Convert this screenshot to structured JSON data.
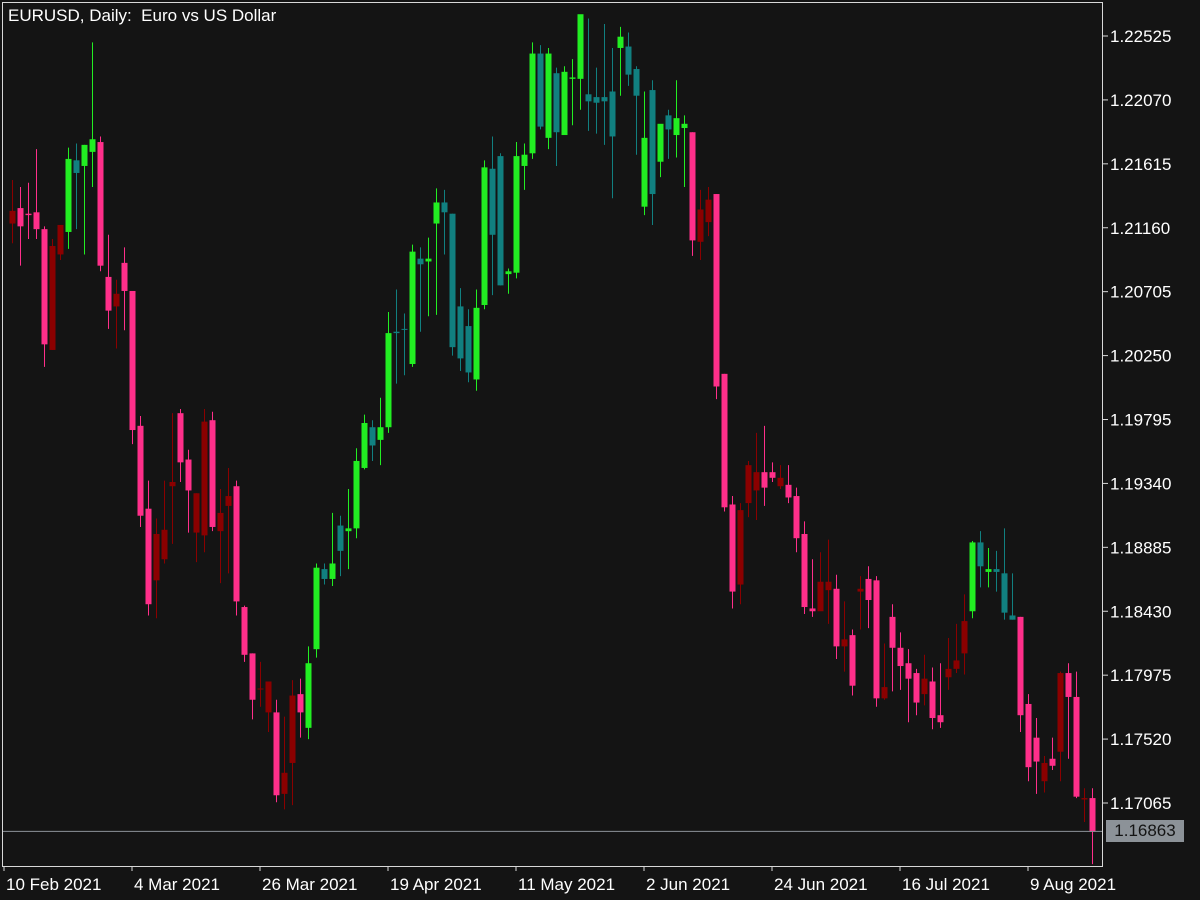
{
  "header": {
    "title": "EURUSD, Daily:  Euro vs US Dollar"
  },
  "colors": {
    "background": "#141414",
    "frame": "#d8d8d8",
    "bull_strong": "#22ee22",
    "bull_weak": "#118080",
    "bear_strong": "#ff2f8a",
    "bear_weak": "#8b0000",
    "current_line": "#8c9298"
  },
  "current_price": {
    "value": 1.16863,
    "label": "1.16863"
  },
  "chart_data": {
    "type": "candlestick",
    "symbol": "EURUSD",
    "timeframe": "Daily",
    "title": "Euro vs US Dollar",
    "ylim": [
      1.1655,
      1.2275
    ],
    "y_ticks": [
      "1.22525",
      "1.22070",
      "1.21615",
      "1.21160",
      "1.20705",
      "1.20250",
      "1.19795",
      "1.19340",
      "1.18885",
      "1.18430",
      "1.17975",
      "1.17520",
      "1.17065"
    ],
    "x_ticks": [
      {
        "label": "10 Feb 2021",
        "index": 0
      },
      {
        "label": "4 Mar 2021",
        "index": 16
      },
      {
        "label": "26 Mar 2021",
        "index": 32
      },
      {
        "label": "19 Apr 2021",
        "index": 48
      },
      {
        "label": "11 May 2021",
        "index": 64
      },
      {
        "label": "2 Jun 2021",
        "index": 80
      },
      {
        "label": "24 Jun 2021",
        "index": 96
      },
      {
        "label": "16 Jul 2021",
        "index": 112
      },
      {
        "label": "9 Aug 2021",
        "index": 128
      }
    ],
    "candles": [
      {
        "o": 1.2119,
        "h": 1.215,
        "l": 1.2105,
        "c": 1.2128,
        "s": "bear_weak"
      },
      {
        "o": 1.213,
        "h": 1.2145,
        "l": 1.2089,
        "c": 1.2117,
        "s": "bear_strong"
      },
      {
        "o": 1.2126,
        "h": 1.2148,
        "l": 1.2108,
        "c": 1.2125,
        "s": "bear_strong"
      },
      {
        "o": 1.2127,
        "h": 1.2172,
        "l": 1.2108,
        "c": 1.2115,
        "s": "bear_strong"
      },
      {
        "o": 1.2115,
        "h": 1.2117,
        "l": 1.2017,
        "c": 1.2033,
        "s": "bear_strong"
      },
      {
        "o": 1.2103,
        "h": 1.2108,
        "l": 1.2029,
        "c": 1.2029,
        "s": "bear_weak"
      },
      {
        "o": 1.2097,
        "h": 1.2118,
        "l": 1.2093,
        "c": 1.2118,
        "s": "bear_weak"
      },
      {
        "o": 1.2113,
        "h": 1.2173,
        "l": 1.2101,
        "c": 1.2165,
        "s": "bull_strong"
      },
      {
        "o": 1.2155,
        "h": 1.2176,
        "l": 1.2115,
        "c": 1.2164,
        "s": "bull_weak"
      },
      {
        "o": 1.216,
        "h": 1.2175,
        "l": 1.2097,
        "c": 1.2175,
        "s": "bull_strong"
      },
      {
        "o": 1.217,
        "h": 1.2248,
        "l": 1.2145,
        "c": 1.2179,
        "s": "bull_strong"
      },
      {
        "o": 1.2177,
        "h": 1.2181,
        "l": 1.2085,
        "c": 1.2089,
        "s": "bear_strong"
      },
      {
        "o": 1.2081,
        "h": 1.2111,
        "l": 1.2044,
        "c": 1.2057,
        "s": "bear_strong"
      },
      {
        "o": 1.2069,
        "h": 1.2079,
        "l": 1.203,
        "c": 1.206,
        "s": "bear_weak"
      },
      {
        "o": 1.2091,
        "h": 1.2102,
        "l": 1.2043,
        "c": 1.2071,
        "s": "bear_strong"
      },
      {
        "o": 1.2071,
        "h": 1.2071,
        "l": 1.1962,
        "c": 1.1972,
        "s": "bear_strong"
      },
      {
        "o": 1.1975,
        "h": 1.1982,
        "l": 1.1903,
        "c": 1.1911,
        "s": "bear_strong"
      },
      {
        "o": 1.1916,
        "h": 1.1936,
        "l": 1.184,
        "c": 1.1848,
        "s": "bear_strong"
      },
      {
        "o": 1.1898,
        "h": 1.1909,
        "l": 1.1838,
        "c": 1.1865,
        "s": "bear_weak"
      },
      {
        "o": 1.188,
        "h": 1.1936,
        "l": 1.1877,
        "c": 1.1901,
        "s": "bear_weak"
      },
      {
        "o": 1.1932,
        "h": 1.1984,
        "l": 1.1891,
        "c": 1.1935,
        "s": "bear_weak"
      },
      {
        "o": 1.1984,
        "h": 1.1987,
        "l": 1.1935,
        "c": 1.1949,
        "s": "bear_strong"
      },
      {
        "o": 1.1951,
        "h": 1.1958,
        "l": 1.1899,
        "c": 1.1929,
        "s": "bear_strong"
      },
      {
        "o": 1.1927,
        "h": 1.1927,
        "l": 1.1878,
        "c": 1.1899,
        "s": "bear_weak"
      },
      {
        "o": 1.1978,
        "h": 1.1987,
        "l": 1.1885,
        "c": 1.1897,
        "s": "bear_weak"
      },
      {
        "o": 1.1979,
        "h": 1.1985,
        "l": 1.19,
        "c": 1.1903,
        "s": "bear_strong"
      },
      {
        "o": 1.1913,
        "h": 1.193,
        "l": 1.1863,
        "c": 1.19,
        "s": "bear_weak"
      },
      {
        "o": 1.1925,
        "h": 1.1945,
        "l": 1.187,
        "c": 1.1918,
        "s": "bear_weak"
      },
      {
        "o": 1.1932,
        "h": 1.1936,
        "l": 1.184,
        "c": 1.185,
        "s": "bear_strong"
      },
      {
        "o": 1.1846,
        "h": 1.1847,
        "l": 1.1807,
        "c": 1.1812,
        "s": "bear_strong"
      },
      {
        "o": 1.1813,
        "h": 1.1813,
        "l": 1.1766,
        "c": 1.178,
        "s": "bear_strong"
      },
      {
        "o": 1.1788,
        "h": 1.1807,
        "l": 1.1775,
        "c": 1.1788,
        "s": "bear_weak"
      },
      {
        "o": 1.1793,
        "h": 1.1793,
        "l": 1.1757,
        "c": 1.1771,
        "s": "bear_weak"
      },
      {
        "o": 1.1771,
        "h": 1.178,
        "l": 1.1707,
        "c": 1.1712,
        "s": "bear_strong"
      },
      {
        "o": 1.1728,
        "h": 1.1768,
        "l": 1.1702,
        "c": 1.1713,
        "s": "bear_weak"
      },
      {
        "o": 1.1783,
        "h": 1.1794,
        "l": 1.1705,
        "c": 1.1735,
        "s": "bear_weak"
      },
      {
        "o": 1.1784,
        "h": 1.1795,
        "l": 1.1753,
        "c": 1.1771,
        "s": "bear_strong"
      },
      {
        "o": 1.176,
        "h": 1.1818,
        "l": 1.1752,
        "c": 1.1806,
        "s": "bull_strong"
      },
      {
        "o": 1.1816,
        "h": 1.1877,
        "l": 1.181,
        "c": 1.1874,
        "s": "bull_strong"
      },
      {
        "o": 1.1873,
        "h": 1.1877,
        "l": 1.1862,
        "c": 1.1866,
        "s": "bull_weak"
      },
      {
        "o": 1.1866,
        "h": 1.1913,
        "l": 1.1861,
        "c": 1.1877,
        "s": "bull_strong"
      },
      {
        "o": 1.1886,
        "h": 1.1911,
        "l": 1.1868,
        "c": 1.1904,
        "s": "bull_weak"
      },
      {
        "o": 1.19,
        "h": 1.193,
        "l": 1.1873,
        "c": 1.1902,
        "s": "bull_strong"
      },
      {
        "o": 1.1902,
        "h": 1.1959,
        "l": 1.1895,
        "c": 1.195,
        "s": "bull_strong"
      },
      {
        "o": 1.1945,
        "h": 1.1983,
        "l": 1.1944,
        "c": 1.1977,
        "s": "bull_strong"
      },
      {
        "o": 1.1961,
        "h": 1.1979,
        "l": 1.195,
        "c": 1.1974,
        "s": "bull_weak"
      },
      {
        "o": 1.1965,
        "h": 1.1995,
        "l": 1.1947,
        "c": 1.1974,
        "s": "bull_strong"
      },
      {
        "o": 1.1974,
        "h": 1.2056,
        "l": 1.197,
        "c": 1.2041,
        "s": "bull_strong"
      },
      {
        "o": 1.2041,
        "h": 1.2072,
        "l": 1.2005,
        "c": 1.2042,
        "s": "bull_weak"
      },
      {
        "o": 1.2044,
        "h": 1.2055,
        "l": 1.2011,
        "c": 1.2044,
        "s": "bull_weak"
      },
      {
        "o": 1.2019,
        "h": 1.2104,
        "l": 1.2017,
        "c": 1.2099,
        "s": "bull_strong"
      },
      {
        "o": 1.209,
        "h": 1.2102,
        "l": 1.2042,
        "c": 1.2094,
        "s": "bull_weak"
      },
      {
        "o": 1.2092,
        "h": 1.2109,
        "l": 1.2053,
        "c": 1.2094,
        "s": "bull_strong"
      },
      {
        "o": 1.2119,
        "h": 1.2144,
        "l": 1.2054,
        "c": 1.2134,
        "s": "bull_strong"
      },
      {
        "o": 1.2134,
        "h": 1.2143,
        "l": 1.2097,
        "c": 1.2127,
        "s": "bull_weak"
      },
      {
        "o": 1.2126,
        "h": 1.2126,
        "l": 1.2025,
        "c": 1.2031,
        "s": "bull_weak"
      },
      {
        "o": 1.206,
        "h": 1.2073,
        "l": 1.2014,
        "c": 1.2023,
        "s": "bull_weak"
      },
      {
        "o": 1.2046,
        "h": 1.2058,
        "l": 1.2006,
        "c": 1.2013,
        "s": "bull_weak"
      },
      {
        "o": 1.2008,
        "h": 1.2072,
        "l": 1.2,
        "c": 1.2059,
        "s": "bull_strong"
      },
      {
        "o": 1.2061,
        "h": 1.2164,
        "l": 1.2058,
        "c": 1.2159,
        "s": "bull_strong"
      },
      {
        "o": 1.2158,
        "h": 1.2181,
        "l": 1.2068,
        "c": 1.2111,
        "s": "bull_weak"
      },
      {
        "o": 1.2075,
        "h": 1.2169,
        "l": 1.2075,
        "c": 1.2167,
        "s": "bull_weak"
      },
      {
        "o": 1.2083,
        "h": 1.2087,
        "l": 1.2069,
        "c": 1.2085,
        "s": "bull_strong"
      },
      {
        "o": 1.2084,
        "h": 1.2177,
        "l": 1.208,
        "c": 1.2167,
        "s": "bull_strong"
      },
      {
        "o": 1.216,
        "h": 1.2176,
        "l": 1.2143,
        "c": 1.2168,
        "s": "bull_strong"
      },
      {
        "o": 1.2169,
        "h": 1.2248,
        "l": 1.2165,
        "c": 1.224,
        "s": "bull_strong"
      },
      {
        "o": 1.224,
        "h": 1.2246,
        "l": 1.2186,
        "c": 1.2188,
        "s": "bull_weak"
      },
      {
        "o": 1.224,
        "h": 1.2244,
        "l": 1.2172,
        "c": 1.218,
        "s": "bull_strong"
      },
      {
        "o": 1.2184,
        "h": 1.223,
        "l": 1.216,
        "c": 1.2226,
        "s": "bull_weak"
      },
      {
        "o": 1.2227,
        "h": 1.2231,
        "l": 1.2182,
        "c": 1.2182,
        "s": "bull_strong"
      },
      {
        "o": 1.2223,
        "h": 1.2236,
        "l": 1.2189,
        "c": 1.2222,
        "s": "bull_strong"
      },
      {
        "o": 1.2222,
        "h": 1.2266,
        "l": 1.22,
        "c": 1.2268,
        "s": "bull_strong"
      },
      {
        "o": 1.2211,
        "h": 1.2265,
        "l": 1.2185,
        "c": 1.2206,
        "s": "bull_weak"
      },
      {
        "o": 1.2205,
        "h": 1.223,
        "l": 1.2183,
        "c": 1.2209,
        "s": "bull_weak"
      },
      {
        "o": 1.2209,
        "h": 1.2261,
        "l": 1.2175,
        "c": 1.2206,
        "s": "bull_weak"
      },
      {
        "o": 1.2213,
        "h": 1.2244,
        "l": 1.2137,
        "c": 1.2181,
        "s": "bull_weak"
      },
      {
        "o": 1.2244,
        "h": 1.2259,
        "l": 1.221,
        "c": 1.2252,
        "s": "bull_strong"
      },
      {
        "o": 1.2245,
        "h": 1.2255,
        "l": 1.2217,
        "c": 1.2225,
        "s": "bull_weak"
      },
      {
        "o": 1.2229,
        "h": 1.2231,
        "l": 1.2168,
        "c": 1.221,
        "s": "bull_weak"
      },
      {
        "o": 1.218,
        "h": 1.2213,
        "l": 1.2125,
        "c": 1.2131,
        "s": "bull_strong"
      },
      {
        "o": 1.2214,
        "h": 1.2221,
        "l": 1.2118,
        "c": 1.214,
        "s": "bull_weak"
      },
      {
        "o": 1.2163,
        "h": 1.2188,
        "l": 1.2152,
        "c": 1.219,
        "s": "bull_strong"
      },
      {
        "o": 1.2196,
        "h": 1.22,
        "l": 1.2165,
        "c": 1.2186,
        "s": "bull_weak"
      },
      {
        "o": 1.2182,
        "h": 1.2221,
        "l": 1.2166,
        "c": 1.2194,
        "s": "bull_strong"
      },
      {
        "o": 1.219,
        "h": 1.2196,
        "l": 1.2145,
        "c": 1.2187,
        "s": "bull_strong"
      },
      {
        "o": 1.2184,
        "h": 1.2184,
        "l": 1.2096,
        "c": 1.2107,
        "s": "bear_strong"
      },
      {
        "o": 1.2129,
        "h": 1.2143,
        "l": 1.2093,
        "c": 1.2106,
        "s": "bear_weak"
      },
      {
        "o": 1.2136,
        "h": 1.2145,
        "l": 1.211,
        "c": 1.212,
        "s": "bear_weak"
      },
      {
        "o": 1.214,
        "h": 1.214,
        "l": 1.1994,
        "c": 1.2003,
        "s": "bear_strong"
      },
      {
        "o": 1.2012,
        "h": 1.2012,
        "l": 1.1914,
        "c": 1.1917,
        "s": "bear_strong"
      },
      {
        "o": 1.1919,
        "h": 1.1925,
        "l": 1.1845,
        "c": 1.1857,
        "s": "bear_strong"
      },
      {
        "o": 1.1915,
        "h": 1.192,
        "l": 1.1848,
        "c": 1.1862,
        "s": "bear_weak"
      },
      {
        "o": 1.192,
        "h": 1.195,
        "l": 1.191,
        "c": 1.1947,
        "s": "bear_weak"
      },
      {
        "o": 1.1942,
        "h": 1.197,
        "l": 1.1908,
        "c": 1.1929,
        "s": "bear_weak"
      },
      {
        "o": 1.1942,
        "h": 1.1975,
        "l": 1.1918,
        "c": 1.1931,
        "s": "bear_strong"
      },
      {
        "o": 1.1942,
        "h": 1.1949,
        "l": 1.1935,
        "c": 1.1938,
        "s": "bear_strong"
      },
      {
        "o": 1.1938,
        "h": 1.1947,
        "l": 1.193,
        "c": 1.1932,
        "s": "bear_weak"
      },
      {
        "o": 1.1933,
        "h": 1.1947,
        "l": 1.192,
        "c": 1.1924,
        "s": "bear_strong"
      },
      {
        "o": 1.1925,
        "h": 1.1931,
        "l": 1.1885,
        "c": 1.1895,
        "s": "bear_strong"
      },
      {
        "o": 1.1898,
        "h": 1.1907,
        "l": 1.1841,
        "c": 1.1846,
        "s": "bear_strong"
      },
      {
        "o": 1.1845,
        "h": 1.188,
        "l": 1.1839,
        "c": 1.1843,
        "s": "bear_strong"
      },
      {
        "o": 1.1864,
        "h": 1.1885,
        "l": 1.1845,
        "c": 1.1843,
        "s": "bear_weak"
      },
      {
        "o": 1.1864,
        "h": 1.1894,
        "l": 1.1834,
        "c": 1.1858,
        "s": "bear_weak"
      },
      {
        "o": 1.1859,
        "h": 1.1869,
        "l": 1.1809,
        "c": 1.1818,
        "s": "bear_strong"
      },
      {
        "o": 1.1823,
        "h": 1.185,
        "l": 1.18,
        "c": 1.1818,
        "s": "bear_weak"
      },
      {
        "o": 1.1826,
        "h": 1.183,
        "l": 1.1783,
        "c": 1.179,
        "s": "bear_strong"
      },
      {
        "o": 1.1859,
        "h": 1.1868,
        "l": 1.183,
        "c": 1.1857,
        "s": "bear_weak"
      },
      {
        "o": 1.1866,
        "h": 1.1875,
        "l": 1.1831,
        "c": 1.1851,
        "s": "bear_strong"
      },
      {
        "o": 1.1865,
        "h": 1.1868,
        "l": 1.1775,
        "c": 1.1781,
        "s": "bear_strong"
      },
      {
        "o": 1.1789,
        "h": 1.182,
        "l": 1.178,
        "c": 1.1781,
        "s": "bear_weak"
      },
      {
        "o": 1.1839,
        "h": 1.1848,
        "l": 1.1786,
        "c": 1.1817,
        "s": "bear_strong"
      },
      {
        "o": 1.1817,
        "h": 1.1828,
        "l": 1.1787,
        "c": 1.1804,
        "s": "bear_strong"
      },
      {
        "o": 1.1806,
        "h": 1.1816,
        "l": 1.1764,
        "c": 1.1795,
        "s": "bear_strong"
      },
      {
        "o": 1.1799,
        "h": 1.1802,
        "l": 1.1769,
        "c": 1.1778,
        "s": "bear_strong"
      },
      {
        "o": 1.1795,
        "h": 1.1812,
        "l": 1.1776,
        "c": 1.1784,
        "s": "bear_weak"
      },
      {
        "o": 1.1793,
        "h": 1.1803,
        "l": 1.1759,
        "c": 1.1767,
        "s": "bear_strong"
      },
      {
        "o": 1.1769,
        "h": 1.1806,
        "l": 1.176,
        "c": 1.1764,
        "s": "bear_strong"
      },
      {
        "o": 1.1796,
        "h": 1.1824,
        "l": 1.1787,
        "c": 1.1802,
        "s": "bear_weak"
      },
      {
        "o": 1.1808,
        "h": 1.1834,
        "l": 1.1799,
        "c": 1.1802,
        "s": "bear_weak"
      },
      {
        "o": 1.1836,
        "h": 1.1855,
        "l": 1.1798,
        "c": 1.1813,
        "s": "bear_weak"
      },
      {
        "o": 1.1843,
        "h": 1.1893,
        "l": 1.1838,
        "c": 1.1892,
        "s": "bull_strong"
      },
      {
        "o": 1.1892,
        "h": 1.19,
        "l": 1.186,
        "c": 1.1875,
        "s": "bull_weak"
      },
      {
        "o": 1.1871,
        "h": 1.1888,
        "l": 1.186,
        "c": 1.1873,
        "s": "bull_strong"
      },
      {
        "o": 1.1873,
        "h": 1.1886,
        "l": 1.1857,
        "c": 1.1871,
        "s": "bull_weak"
      },
      {
        "o": 1.187,
        "h": 1.1902,
        "l": 1.1837,
        "c": 1.1842,
        "s": "bull_weak"
      },
      {
        "o": 1.184,
        "h": 1.187,
        "l": 1.1837,
        "c": 1.1837,
        "s": "bull_weak"
      },
      {
        "o": 1.1839,
        "h": 1.1839,
        "l": 1.1757,
        "c": 1.1769,
        "s": "bear_strong"
      },
      {
        "o": 1.1777,
        "h": 1.1784,
        "l": 1.1722,
        "c": 1.1732,
        "s": "bear_strong"
      },
      {
        "o": 1.1753,
        "h": 1.1767,
        "l": 1.1713,
        "c": 1.1736,
        "s": "bear_strong"
      },
      {
        "o": 1.1735,
        "h": 1.174,
        "l": 1.1714,
        "c": 1.1722,
        "s": "bear_weak"
      },
      {
        "o": 1.1738,
        "h": 1.1753,
        "l": 1.173,
        "c": 1.1733,
        "s": "bear_strong"
      },
      {
        "o": 1.1743,
        "h": 1.18,
        "l": 1.1722,
        "c": 1.1799,
        "s": "bear_weak"
      },
      {
        "o": 1.1799,
        "h": 1.1806,
        "l": 1.1738,
        "c": 1.1782,
        "s": "bear_strong"
      },
      {
        "o": 1.1782,
        "h": 1.18,
        "l": 1.171,
        "c": 1.1711,
        "s": "bear_strong"
      },
      {
        "o": 1.171,
        "h": 1.1717,
        "l": 1.1693,
        "c": 1.1709,
        "s": "bear_weak"
      },
      {
        "o": 1.171,
        "h": 1.1717,
        "l": 1.1663,
        "c": 1.1686,
        "s": "bear_strong"
      }
    ]
  }
}
